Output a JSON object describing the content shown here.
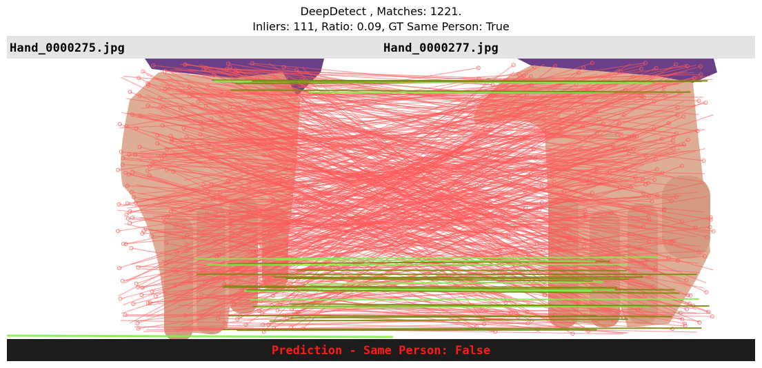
{
  "title": {
    "line1": "DeepDetect , Matches: 1221.",
    "line2": "Inliers: 111, Ratio: 0.09, GT Same Person: True"
  },
  "left_image": {
    "filename": "Hand_0000275.jpg"
  },
  "right_image": {
    "filename": "Hand_0000277.jpg"
  },
  "prediction": {
    "text": "Prediction - Same Person: False"
  },
  "stats": {
    "matches": 1221,
    "inliers": 111,
    "ratio": 0.09
  },
  "colors": {
    "outlier": "#ff5a5a",
    "inlier": "#7ff04a",
    "inlier_dark": "#7a8a10",
    "header_bg": "#e4e4e4",
    "footer_bg": "#1c1c1c",
    "prediction_text": "#ff1a1a"
  }
}
